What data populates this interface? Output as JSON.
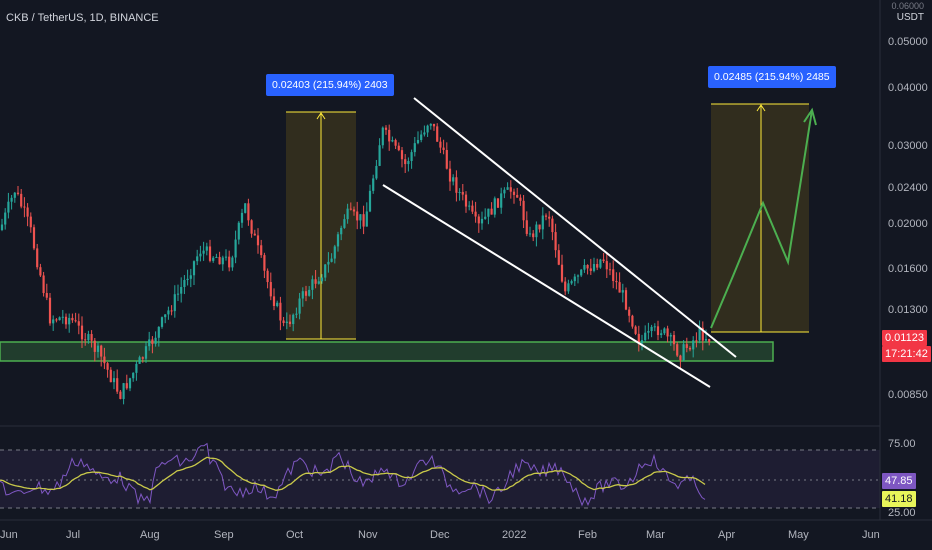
{
  "header": {
    "title": "CKB / TetherUS, 1D, BINANCE"
  },
  "axis": {
    "unit_top": "0.06000",
    "unit": "USDT",
    "price_ticks": [
      "0.05000",
      "0.04000",
      "0.03000",
      "0.02400",
      "0.02000",
      "0.01600",
      "0.01300",
      "0.00850"
    ],
    "rsi_ticks": [
      "75.00",
      "25.00"
    ],
    "months": [
      "Jun",
      "Jul",
      "Aug",
      "Sep",
      "Oct",
      "Nov",
      "Dec",
      "2022",
      "Feb",
      "Mar",
      "Apr",
      "May",
      "Jun"
    ]
  },
  "price_tag": {
    "price": "0.01123",
    "countdown": "17:21:42",
    "color": "#f23645"
  },
  "rsi_tags": {
    "rsi": "47.85",
    "ma": "41.18"
  },
  "measure_left": {
    "label": "0.02403 (215.94%) 2403"
  },
  "measure_right": {
    "label": "0.02485 (215.94%) 2485"
  },
  "colors": {
    "bg": "#131722",
    "up": "#26a69a",
    "down": "#ef5350",
    "accent": "#2962ff",
    "zone": "#4caf50",
    "rsi": "#7e57c2",
    "rsi_ma": "#c9c94a"
  }
}
